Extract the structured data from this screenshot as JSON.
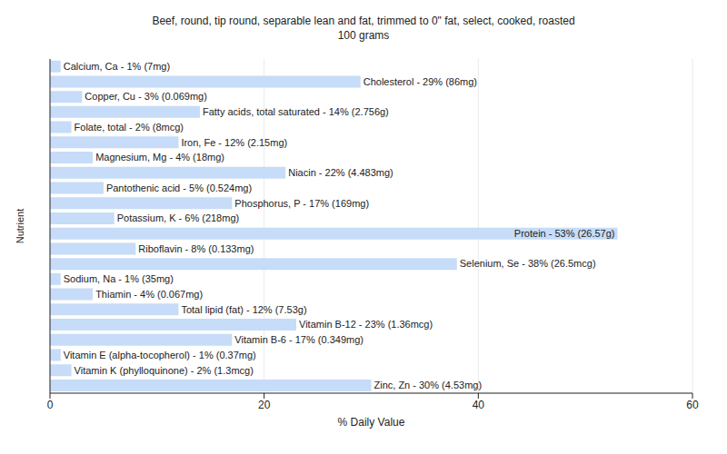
{
  "chart_data": {
    "type": "bar",
    "orientation": "horizontal",
    "title": "Beef, round, tip round, separable lean and fat, trimmed to 0\" fat, select, cooked, roasted",
    "subtitle": "100 grams",
    "x_label": "% Daily Value",
    "y_label": "Nutrient",
    "categories": [
      "Calcium, Ca",
      "Cholesterol",
      "Copper, Cu",
      "Fatty acids, total saturated",
      "Folate, total",
      "Iron, Fe",
      "Magnesium, Mg",
      "Niacin",
      "Pantothenic acid",
      "Phosphorus, P",
      "Potassium, K",
      "Protein",
      "Riboflavin",
      "Selenium, Se",
      "Sodium, Na",
      "Thiamin",
      "Total lipid (fat)",
      "Vitamin B-12",
      "Vitamin B-6",
      "Vitamin E (alpha-tocopherol)",
      "Vitamin K (phylloquinone)",
      "Zinc, Zn"
    ],
    "values": [
      1,
      29,
      3,
      14,
      2,
      12,
      4,
      22,
      5,
      17,
      6,
      53,
      8,
      38,
      1,
      4,
      12,
      23,
      17,
      1,
      2,
      30
    ],
    "value_labels": [
      "Calcium, Ca - 1% (7mg)",
      "Cholesterol - 29% (86mg)",
      "Copper, Cu - 3% (0.069mg)",
      "Fatty acids, total saturated - 14% (2.756g)",
      "Folate, total - 2% (8mcg)",
      "Iron, Fe - 12% (2.15mg)",
      "Magnesium, Mg - 4% (18mg)",
      "Niacin - 22% (4.483mg)",
      "Pantothenic acid - 5% (0.524mg)",
      "Phosphorus, P - 17% (169mg)",
      "Potassium, K - 6% (218mg)",
      "Protein - 53% (26.57g)",
      "Riboflavin - 8% (0.133mg)",
      "Selenium, Se - 38% (26.5mcg)",
      "Sodium, Na - 1% (35mg)",
      "Thiamin - 4% (0.067mg)",
      "Total lipid (fat) - 12% (7.53g)",
      "Vitamin B-12 - 23% (1.36mcg)",
      "Vitamin B-6 - 17% (0.349mg)",
      "Vitamin E (alpha-tocopherol) - 1% (0.37mg)",
      "Vitamin K (phylloquinone) - 2% (1.3mcg)",
      "Zinc, Zn - 30% (4.53mg)"
    ],
    "color": "#c6dcf8",
    "xlim": [
      0,
      60
    ],
    "xticks": [
      0,
      20,
      40,
      60
    ],
    "grid": true,
    "data_labels": true,
    "tick_labels": "x"
  }
}
